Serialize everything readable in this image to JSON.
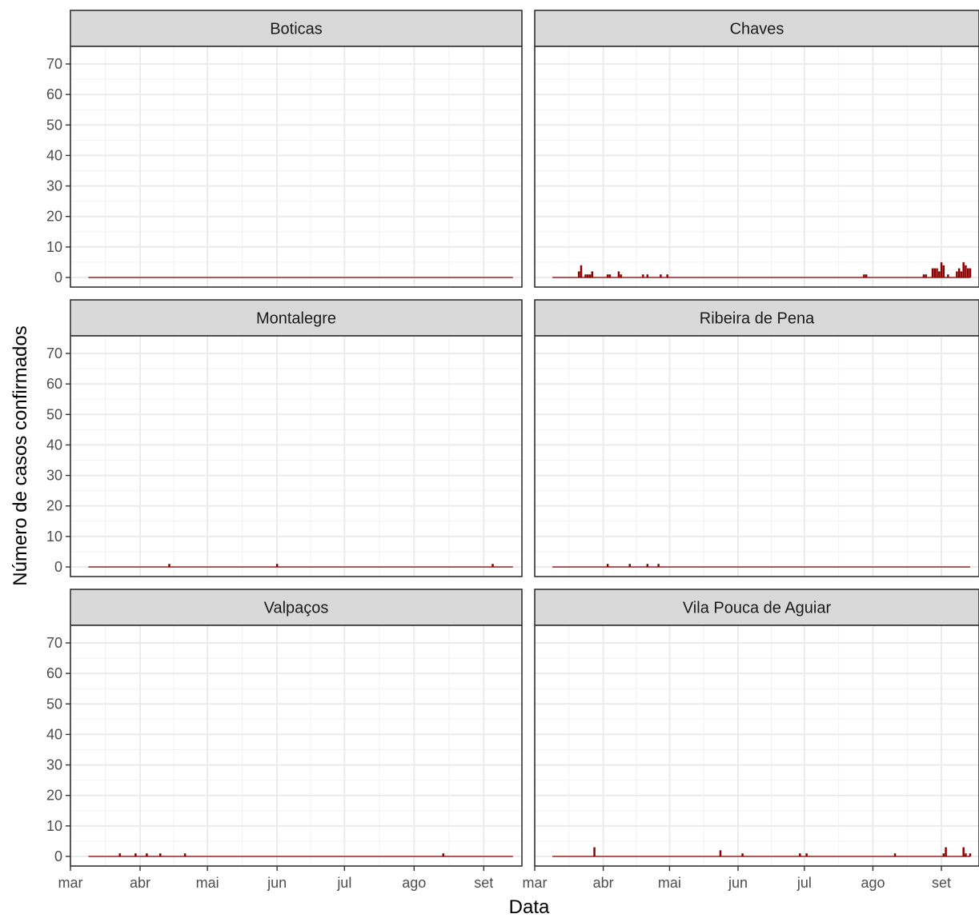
{
  "chart_data": {
    "type": "bar",
    "title": "",
    "xlabel": "Data",
    "ylabel": "Número de casos confirmados",
    "ylim": [
      0,
      70
    ],
    "yticks": [
      0,
      10,
      20,
      30,
      40,
      50,
      60,
      70
    ],
    "xlim": [
      "2020-03-01",
      "2020-09-18"
    ],
    "xticks": [
      {
        "date": "2020-03-01",
        "label": "mar"
      },
      {
        "date": "2020-04-01",
        "label": "abr"
      },
      {
        "date": "2020-05-01",
        "label": "mai"
      },
      {
        "date": "2020-06-01",
        "label": "jun"
      },
      {
        "date": "2020-07-01",
        "label": "jul"
      },
      {
        "date": "2020-08-01",
        "label": "ago"
      },
      {
        "date": "2020-09-01",
        "label": "set"
      }
    ],
    "baseline_range": [
      "2020-03-09",
      "2020-09-14"
    ],
    "grid": true,
    "legend": "none",
    "bar_color": "#8b0000",
    "facets": [
      {
        "name": "Boticas",
        "points": []
      },
      {
        "name": "Chaves",
        "points": [
          {
            "x": "2020-03-21",
            "y": 2
          },
          {
            "x": "2020-03-22",
            "y": 4
          },
          {
            "x": "2020-03-24",
            "y": 1
          },
          {
            "x": "2020-03-25",
            "y": 1
          },
          {
            "x": "2020-03-26",
            "y": 1
          },
          {
            "x": "2020-03-27",
            "y": 2
          },
          {
            "x": "2020-04-03",
            "y": 1
          },
          {
            "x": "2020-04-04",
            "y": 1
          },
          {
            "x": "2020-04-08",
            "y": 2
          },
          {
            "x": "2020-04-09",
            "y": 1
          },
          {
            "x": "2020-04-19",
            "y": 1
          },
          {
            "x": "2020-04-21",
            "y": 1
          },
          {
            "x": "2020-04-27",
            "y": 1
          },
          {
            "x": "2020-04-30",
            "y": 1
          },
          {
            "x": "2020-07-28",
            "y": 1
          },
          {
            "x": "2020-07-29",
            "y": 1
          },
          {
            "x": "2020-08-24",
            "y": 1
          },
          {
            "x": "2020-08-25",
            "y": 1
          },
          {
            "x": "2020-08-28",
            "y": 3
          },
          {
            "x": "2020-08-29",
            "y": 3
          },
          {
            "x": "2020-08-30",
            "y": 3
          },
          {
            "x": "2020-08-31",
            "y": 2
          },
          {
            "x": "2020-09-01",
            "y": 5
          },
          {
            "x": "2020-09-02",
            "y": 4
          },
          {
            "x": "2020-09-04",
            "y": 1
          },
          {
            "x": "2020-09-08",
            "y": 2
          },
          {
            "x": "2020-09-09",
            "y": 3
          },
          {
            "x": "2020-09-10",
            "y": 2
          },
          {
            "x": "2020-09-11",
            "y": 5
          },
          {
            "x": "2020-09-12",
            "y": 4
          },
          {
            "x": "2020-09-13",
            "y": 3
          },
          {
            "x": "2020-09-14",
            "y": 3
          }
        ]
      },
      {
        "name": "Montalegre",
        "points": [
          {
            "x": "2020-04-14",
            "y": 1
          },
          {
            "x": "2020-06-01",
            "y": 1
          },
          {
            "x": "2020-09-05",
            "y": 1
          }
        ]
      },
      {
        "name": "Ribeira de Pena",
        "points": [
          {
            "x": "2020-04-03",
            "y": 1
          },
          {
            "x": "2020-04-13",
            "y": 1
          },
          {
            "x": "2020-04-21",
            "y": 1
          },
          {
            "x": "2020-04-26",
            "y": 1
          }
        ]
      },
      {
        "name": "Valpaços",
        "points": [
          {
            "x": "2020-03-23",
            "y": 1
          },
          {
            "x": "2020-03-30",
            "y": 1
          },
          {
            "x": "2020-04-04",
            "y": 1
          },
          {
            "x": "2020-04-10",
            "y": 1
          },
          {
            "x": "2020-04-21",
            "y": 1
          },
          {
            "x": "2020-08-14",
            "y": 1
          }
        ]
      },
      {
        "name": "Vila Pouca de Aguiar",
        "points": [
          {
            "x": "2020-03-28",
            "y": 3
          },
          {
            "x": "2020-05-24",
            "y": 2
          },
          {
            "x": "2020-06-03",
            "y": 1
          },
          {
            "x": "2020-06-29",
            "y": 1
          },
          {
            "x": "2020-07-02",
            "y": 1
          },
          {
            "x": "2020-08-11",
            "y": 1
          },
          {
            "x": "2020-09-02",
            "y": 1
          },
          {
            "x": "2020-09-03",
            "y": 3
          },
          {
            "x": "2020-09-11",
            "y": 3
          },
          {
            "x": "2020-09-12",
            "y": 1
          },
          {
            "x": "2020-09-14",
            "y": 1
          }
        ]
      }
    ]
  }
}
